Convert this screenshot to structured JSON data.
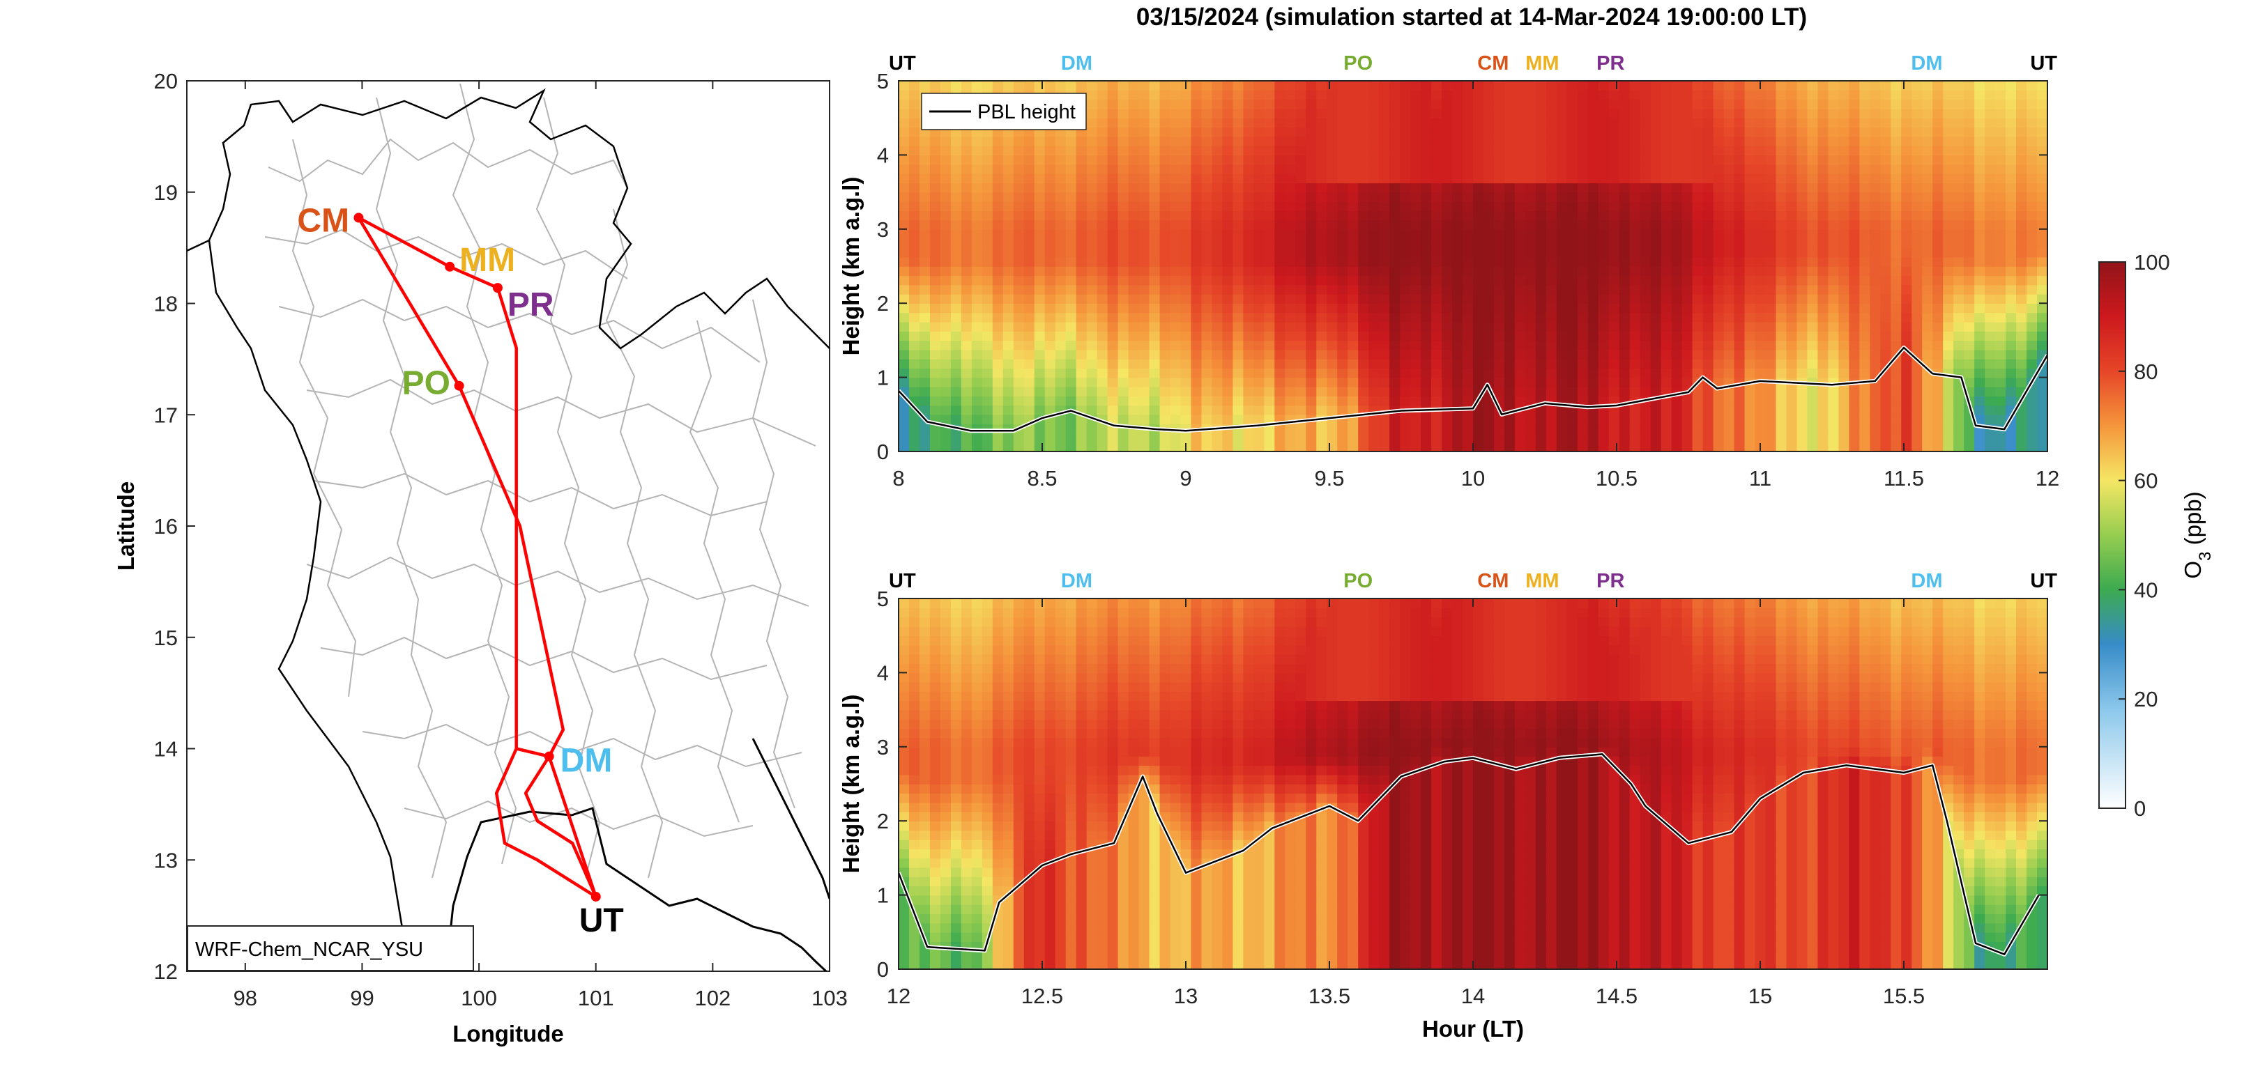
{
  "figure_title": "03/15/2024 (simulation started at 14-Mar-2024 19:00:00 LT)",
  "colors": {
    "CM": "#d95319",
    "MM": "#edb120",
    "PR": "#7e2f8e",
    "PO": "#77ac30",
    "DM": "#4dbeee",
    "UT": "#000000",
    "track": "#ff0000",
    "boundary": "#b4b4b4",
    "coast": "#000000"
  },
  "chart_data": [
    {
      "type": "map",
      "xlabel": "Longitude",
      "ylabel": "Latitude",
      "xlim": [
        97.5,
        103
      ],
      "ylim": [
        12,
        20
      ],
      "xticks": [
        98,
        99,
        100,
        101,
        102,
        103
      ],
      "yticks": [
        12,
        13,
        14,
        15,
        16,
        17,
        18,
        19,
        20
      ],
      "model_label": "WRF-Chem_NCAR_YSU",
      "sites": [
        {
          "name": "CM",
          "lon": 98.97,
          "lat": 18.77
        },
        {
          "name": "MM",
          "lon": 99.75,
          "lat": 18.33
        },
        {
          "name": "PR",
          "lon": 100.16,
          "lat": 18.14
        },
        {
          "name": "PO",
          "lon": 99.83,
          "lat": 17.26
        },
        {
          "name": "DM",
          "lon": 100.6,
          "lat": 13.93
        },
        {
          "name": "UT",
          "lon": 101.0,
          "lat": 12.67
        }
      ],
      "flight_track": [
        [
          101.0,
          12.67
        ],
        [
          100.6,
          13.93
        ],
        [
          100.72,
          14.17
        ],
        [
          100.35,
          16.0
        ],
        [
          99.83,
          17.26
        ],
        [
          98.97,
          18.77
        ],
        [
          99.75,
          18.33
        ],
        [
          100.16,
          18.14
        ],
        [
          100.32,
          17.6
        ],
        [
          100.32,
          14.0
        ],
        [
          100.6,
          13.93
        ],
        [
          100.4,
          13.6
        ],
        [
          100.5,
          13.35
        ],
        [
          100.8,
          13.15
        ],
        [
          101.0,
          12.67
        ],
        [
          100.5,
          13.0
        ],
        [
          100.22,
          13.15
        ],
        [
          100.15,
          13.6
        ],
        [
          100.32,
          14.0
        ]
      ]
    },
    {
      "type": "heatmap",
      "xlabel": "",
      "ylabel": "Height (km a.g.l)",
      "xlim": [
        8,
        12
      ],
      "ylim": [
        0,
        5
      ],
      "xticks": [
        8,
        8.5,
        9,
        9.5,
        10,
        10.5,
        11,
        11.5,
        12
      ],
      "yticks": [
        0,
        1,
        2,
        3,
        4,
        5
      ],
      "legend": "PBL height",
      "legend_position": "top-left",
      "site_markers": [
        {
          "label": "UT",
          "hour": 8.0
        },
        {
          "label": "DM",
          "hour": 8.62
        },
        {
          "label": "PO",
          "hour": 9.6
        },
        {
          "label": "CM",
          "hour": 10.07
        },
        {
          "label": "MM",
          "hour": 10.3
        },
        {
          "label": "PR",
          "hour": 10.43
        },
        {
          "label": "DM",
          "hour": 11.58
        },
        {
          "label": "UT",
          "hour": 12.0
        }
      ],
      "o3_profile": {
        "hours": [
          8.0,
          8.25,
          8.5,
          8.75,
          9.0,
          9.25,
          9.5,
          9.75,
          10.0,
          10.25,
          10.5,
          10.75,
          11.0,
          11.25,
          11.5,
          11.75,
          12.0
        ],
        "surface_ppb": [
          30,
          45,
          48,
          52,
          60,
          64,
          66,
          88,
          96,
          95,
          92,
          85,
          68,
          60,
          86,
          35,
          32
        ],
        "max_ppb": [
          75,
          74,
          76,
          78,
          80,
          88,
          96,
          100,
          100,
          100,
          100,
          95,
          84,
          78,
          76,
          74,
          72
        ]
      },
      "pbl_height": {
        "hours": [
          8.0,
          8.1,
          8.25,
          8.4,
          8.5,
          8.6,
          8.75,
          8.9,
          9.0,
          9.25,
          9.5,
          9.75,
          10.0,
          10.05,
          10.1,
          10.25,
          10.4,
          10.5,
          10.75,
          10.8,
          10.85,
          11.0,
          11.25,
          11.4,
          11.5,
          11.6,
          11.7,
          11.75,
          11.85,
          12.0
        ],
        "km": [
          0.82,
          0.4,
          0.28,
          0.28,
          0.45,
          0.55,
          0.35,
          0.3,
          0.28,
          0.35,
          0.45,
          0.55,
          0.58,
          0.9,
          0.5,
          0.65,
          0.6,
          0.62,
          0.8,
          1.0,
          0.85,
          0.95,
          0.9,
          0.95,
          1.4,
          1.05,
          1.0,
          0.35,
          0.3,
          1.3
        ]
      }
    },
    {
      "type": "heatmap",
      "xlabel": "Hour (LT)",
      "ylabel": "Height (km a.g.l)",
      "xlim": [
        12,
        16
      ],
      "ylim": [
        0,
        5
      ],
      "xticks": [
        12,
        12.5,
        13,
        13.5,
        14,
        14.5,
        15,
        15.5
      ],
      "yticks": [
        0,
        1,
        2,
        3,
        4,
        5
      ],
      "site_markers": [
        {
          "label": "UT",
          "hour": 12.0
        },
        {
          "label": "DM",
          "hour": 12.62
        },
        {
          "label": "PO",
          "hour": 13.6
        },
        {
          "label": "CM",
          "hour": 14.07
        },
        {
          "label": "MM",
          "hour": 14.3
        },
        {
          "label": "PR",
          "hour": 14.43
        },
        {
          "label": "DM",
          "hour": 15.58
        },
        {
          "label": "UT",
          "hour": 16.0
        }
      ],
      "o3_profile": {
        "hours": [
          12.0,
          12.25,
          12.5,
          12.75,
          13.0,
          13.25,
          13.5,
          13.75,
          14.0,
          14.25,
          14.5,
          14.75,
          15.0,
          15.25,
          15.5,
          15.75,
          16.0
        ],
        "surface_ppb": [
          42,
          44,
          88,
          70,
          66,
          68,
          72,
          98,
          98,
          98,
          96,
          86,
          80,
          84,
          86,
          40,
          38
        ],
        "max_ppb": [
          76,
          75,
          80,
          82,
          84,
          88,
          96,
          100,
          100,
          100,
          98,
          90,
          84,
          80,
          78,
          75,
          74
        ]
      },
      "pbl_height": {
        "hours": [
          12.0,
          12.1,
          12.3,
          12.35,
          12.5,
          12.6,
          12.75,
          12.85,
          12.9,
          13.0,
          13.2,
          13.3,
          13.5,
          13.6,
          13.75,
          13.9,
          14.0,
          14.15,
          14.3,
          14.45,
          14.55,
          14.6,
          14.75,
          14.9,
          15.0,
          15.15,
          15.3,
          15.5,
          15.6,
          15.65,
          15.75,
          15.85,
          15.97
        ],
        "km": [
          1.3,
          0.3,
          0.25,
          0.9,
          1.4,
          1.55,
          1.7,
          2.6,
          2.1,
          1.3,
          1.6,
          1.9,
          2.2,
          2.0,
          2.6,
          2.8,
          2.85,
          2.7,
          2.85,
          2.9,
          2.5,
          2.2,
          1.7,
          1.85,
          2.3,
          2.65,
          2.75,
          2.65,
          2.75,
          2.0,
          0.35,
          0.2,
          1.0
        ]
      }
    },
    {
      "type": "colorbar",
      "label": "O3 (ppb)",
      "label_main": "O",
      "label_sub": "3",
      "label_unit": " (ppb)",
      "range": [
        0,
        100
      ],
      "ticks": [
        0,
        20,
        40,
        60,
        80,
        100
      ]
    }
  ]
}
